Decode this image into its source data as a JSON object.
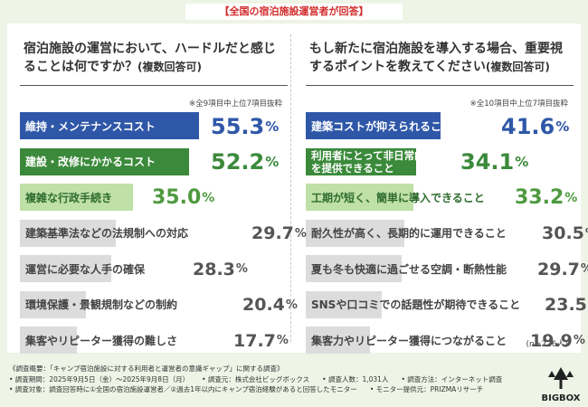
{
  "banner": "【全国の宿泊施設運営者が回答】",
  "left": {
    "question_main": "宿泊施設の運営において、ハードルだと感じることは何ですか？",
    "question_paren": "(複数回答可)",
    "note": "※全9項目中上位7項目抜粋",
    "rows": [
      {
        "label": "維持・メンテナンスコスト",
        "num": "55.3",
        "value": 55.3
      },
      {
        "label": "建設・改修にかかるコスト",
        "num": "52.2",
        "value": 52.2
      },
      {
        "label": "複雑な行政手続き",
        "num": "35.0",
        "value": 35.0
      },
      {
        "label": "建築基準法などの法規制への対応",
        "num": "29.7",
        "value": 29.7
      },
      {
        "label": "運営に必要な人手の確保",
        "num": "28.3",
        "value": 28.3
      },
      {
        "label": "環境保護・景観規制などの制約",
        "num": "20.4",
        "value": 20.4
      },
      {
        "label": "集客やリピーター獲得の難しさ",
        "num": "17.7",
        "value": 17.7
      }
    ]
  },
  "right": {
    "question_main": "もし新たに宿泊施設を導入する場合、重要視するポイントを教えてください",
    "question_paren": "(複数回答可)",
    "note": "※全10項目中上位7項目抜粋",
    "n_note": "(n=226人)",
    "rows": [
      {
        "label": "建築コストが抑えられること",
        "num": "41.6",
        "value": 41.6
      },
      {
        "label": "利用者にとって非日常的な体験を提供できること",
        "num": "34.1",
        "value": 34.1
      },
      {
        "label": "工期が短く、簡単に導入できること",
        "num": "33.2",
        "value": 33.2
      },
      {
        "label": "耐久性が高く、長期的に運用できること",
        "num": "30.5",
        "value": 30.5
      },
      {
        "label": "夏も冬も快適に過ごせる空調・断熱性能",
        "num": "29.7",
        "value": 29.7
      },
      {
        "label": "SNSや口コミでの話題性が期待できること",
        "num": "23.5",
        "value": 23.5
      },
      {
        "label": "集客力やリピーター獲得につながること",
        "num": "19.9",
        "value": 19.9
      }
    ]
  },
  "pct_sign": "%",
  "footer": {
    "line1": "《調査概要：「キャンプ宿泊施設に対する利用者と運営者の意識ギャップ」に関する調査》",
    "period": "• 調査期間：2025年9月5日（金）〜2025年9月8日（月）",
    "org": "• 調査元：株式会社ビッグボックス",
    "people": "• 調査人数：1,031人",
    "method": "• 調査方法：インターネット調査",
    "target": "• 調査対象：調査回答時に①全国の宿泊施設運営者／②過去1年以内にキャンプ宿泊経験があると回答したモニター",
    "monitor": "• モニター提供元：PRIZMAリサーチ"
  },
  "logo_text": "BIGBOX",
  "chart_data": [
    {
      "type": "bar",
      "title": "宿泊施設の運営において、ハードルだと感じることは何ですか？(複数回答可)",
      "categories": [
        "維持・メンテナンスコスト",
        "建設・改修にかかるコスト",
        "複雑な行政手続き",
        "建築基準法などの法規制への対応",
        "運営に必要な人手の確保",
        "環境保護・景観規制などの制約",
        "集客やリピーター獲得の難しさ"
      ],
      "values": [
        55.3,
        52.2,
        35.0,
        29.7,
        28.3,
        20.4,
        17.7
      ],
      "unit": "%"
    },
    {
      "type": "bar",
      "title": "もし新たに宿泊施設を導入する場合、重要視するポイントを教えてください(複数回答可)",
      "categories": [
        "建築コストが抑えられること",
        "利用者にとって非日常的な体験を提供できること",
        "工期が短く、簡単に導入できること",
        "耐久性が高く、長期的に運用できること",
        "夏も冬も快適に過ごせる空調・断熱性能",
        "SNSや口コミでの話題性が期待できること",
        "集客力やリピーター獲得につながること"
      ],
      "values": [
        41.6,
        34.1,
        33.2,
        30.5,
        29.7,
        23.5,
        19.9
      ],
      "unit": "%"
    }
  ],
  "colors": {
    "blue": "#2f57a8",
    "green_dark": "#3b8a3b",
    "green_light": "#bfe0a6",
    "gray": "#dcdcdc"
  }
}
